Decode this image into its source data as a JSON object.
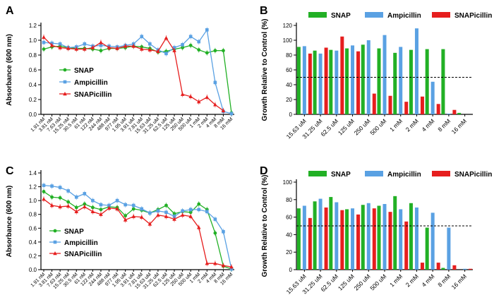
{
  "colors": {
    "SNAP": "#22b025",
    "Ampicillin": "#5aa1e3",
    "SNAPicillin": "#e61e1e"
  },
  "chart_data": [
    {
      "panel": "A",
      "type": "line",
      "ylabel": "Absorbance (600 nm)",
      "ylim": [
        0,
        1.2
      ],
      "yticks": [
        "0.0",
        "0.2",
        "0.4",
        "0.6",
        "0.8",
        "1.0",
        "1.2"
      ],
      "categories": [
        "1.91 nM",
        "3.81 nM",
        "7.63 nM",
        "15.25 nM",
        "30.5 nM",
        "61 nM",
        "122 nM",
        "244 nM",
        "488 nM",
        "977 nM",
        "1.95 uM",
        "3.91 uM",
        "7.81 uM",
        "15.63 uM",
        "31.25 uM",
        "62.5 uM",
        "125 uM",
        "250 uM",
        "500 uM",
        "1 mM",
        "2 mM",
        "4 mM",
        "8 mM",
        "16 mM"
      ],
      "legend": [
        "SNAP",
        "Ampicillin",
        "SNAPicillin"
      ],
      "series": [
        {
          "name": "SNAP",
          "values": [
            0.88,
            0.91,
            0.92,
            0.9,
            0.89,
            0.89,
            0.88,
            0.86,
            0.89,
            0.89,
            0.9,
            0.92,
            0.91,
            0.89,
            0.84,
            0.85,
            0.88,
            0.9,
            0.93,
            0.87,
            0.83,
            0.86,
            0.86,
            0.02
          ]
        },
        {
          "name": "Ampicillin",
          "values": [
            0.97,
            0.96,
            0.95,
            0.9,
            0.91,
            0.95,
            0.92,
            0.93,
            0.92,
            0.91,
            0.93,
            0.95,
            1.05,
            0.95,
            0.87,
            0.82,
            0.9,
            0.94,
            1.05,
            0.98,
            1.14,
            0.43,
            0.04,
            0.01
          ]
        },
        {
          "name": "SNAPicillin",
          "values": [
            1.04,
            0.93,
            0.9,
            0.89,
            0.88,
            0.88,
            0.9,
            0.97,
            0.9,
            0.89,
            0.92,
            0.92,
            0.88,
            0.87,
            0.85,
            1.03,
            0.86,
            0.27,
            0.24,
            0.17,
            0.23,
            0.13,
            0.05,
            null
          ]
        }
      ]
    },
    {
      "panel": "B",
      "type": "bar",
      "ylabel": "Growth Relative to Control (%)",
      "ylim": [
        0,
        120
      ],
      "yticks": [
        "0",
        "20",
        "40",
        "60",
        "80",
        "100",
        "120"
      ],
      "reference_line": 50,
      "categories": [
        "15.63 uM",
        "31.25 uM",
        "62.5 uM",
        "125 uM",
        "250 uM",
        "500 uM",
        "1 mM",
        "2 mM",
        "4 mM",
        "8 mM",
        "16 mM"
      ],
      "legend": [
        "SNAP",
        "Ampicillin",
        "SNAPicillin"
      ],
      "series": [
        {
          "name": "SNAP",
          "values": [
            91,
            86,
            87,
            89,
            94,
            89,
            83,
            87,
            88,
            88,
            2
          ]
        },
        {
          "name": "Ampicillin",
          "values": [
            92,
            82,
            86,
            93,
            100,
            107,
            91,
            116,
            44,
            1,
            0
          ]
        },
        {
          "name": "SNAPicillin",
          "values": [
            82,
            90,
            105,
            85,
            28,
            25,
            17,
            24,
            14,
            6,
            0
          ]
        }
      ]
    },
    {
      "panel": "C",
      "type": "line",
      "ylabel": "Absorbance (600 nm)",
      "ylim": [
        0,
        1.4
      ],
      "yticks": [
        "0.0",
        "0.2",
        "0.4",
        "0.6",
        "0.8",
        "1.0",
        "1.2",
        "1.4"
      ],
      "categories": [
        "1.91 nM",
        "3.81 nM",
        "7.63 nM",
        "15.25 nM",
        "30.5 nM",
        "61 nM",
        "122 nM",
        "244 nM",
        "488 nM",
        "977 nM",
        "1.95 uM",
        "3.91 uM",
        "7.81 uM",
        "15.63 uM",
        "31.25 uM",
        "62.5 uM",
        "125 uM",
        "250 uM",
        "500 uM",
        "1 mM",
        "2 mM",
        "4 mM",
        "8 mM",
        "16 mM"
      ],
      "legend": [
        "SNAP",
        "Ampicillin",
        "SNAPicillin"
      ],
      "series": [
        {
          "name": "SNAP",
          "values": [
            1.13,
            1.05,
            1.04,
            0.98,
            0.9,
            0.95,
            0.9,
            0.87,
            0.91,
            0.9,
            0.78,
            0.88,
            0.86,
            0.82,
            0.87,
            0.93,
            0.81,
            0.84,
            0.83,
            0.95,
            0.87,
            0.53,
            0.05,
            0.01
          ]
        },
        {
          "name": "Ampicillin",
          "values": [
            1.22,
            1.21,
            1.19,
            1.14,
            1.05,
            1.1,
            1.0,
            0.94,
            0.93,
            1.0,
            0.94,
            0.93,
            0.88,
            0.82,
            0.85,
            0.83,
            0.77,
            0.85,
            0.87,
            0.87,
            0.84,
            0.73,
            0.55,
            0.01
          ]
        },
        {
          "name": "SNAPicillin",
          "values": [
            1.02,
            0.93,
            0.91,
            0.92,
            0.84,
            0.91,
            0.84,
            0.8,
            0.89,
            0.88,
            0.72,
            0.77,
            0.76,
            0.66,
            0.79,
            0.77,
            0.73,
            0.79,
            0.77,
            0.61,
            0.09,
            0.09,
            0.06,
            0.04
          ]
        }
      ]
    },
    {
      "panel": "D",
      "type": "bar",
      "ylabel": "Growth Relative to Control (%)",
      "ylim": [
        0,
        100
      ],
      "yticks": [
        "0",
        "20",
        "40",
        "60",
        "80",
        "100"
      ],
      "reference_line": 50,
      "categories": [
        "15.63 uM",
        "31.25 uM",
        "62.5 uM",
        "125 uM",
        "250 uM",
        "500 uM",
        "1 mM",
        "2 mM",
        "4 mM",
        "8 mM",
        "16 mM"
      ],
      "legend": [
        "SNAP",
        "Ampicillin",
        "SNAPicillin"
      ],
      "series": [
        {
          "name": "SNAP",
          "values": [
            70,
            78,
            83,
            69,
            74,
            73,
            84,
            76,
            48,
            2,
            0
          ]
        },
        {
          "name": "Ampicillin",
          "values": [
            73,
            81,
            77,
            70,
            76,
            75,
            69,
            71,
            65,
            48,
            1
          ]
        },
        {
          "name": "SNAPicillin",
          "values": [
            59,
            71,
            68,
            63,
            70,
            66,
            55,
            8,
            8,
            5,
            1
          ]
        }
      ]
    }
  ]
}
